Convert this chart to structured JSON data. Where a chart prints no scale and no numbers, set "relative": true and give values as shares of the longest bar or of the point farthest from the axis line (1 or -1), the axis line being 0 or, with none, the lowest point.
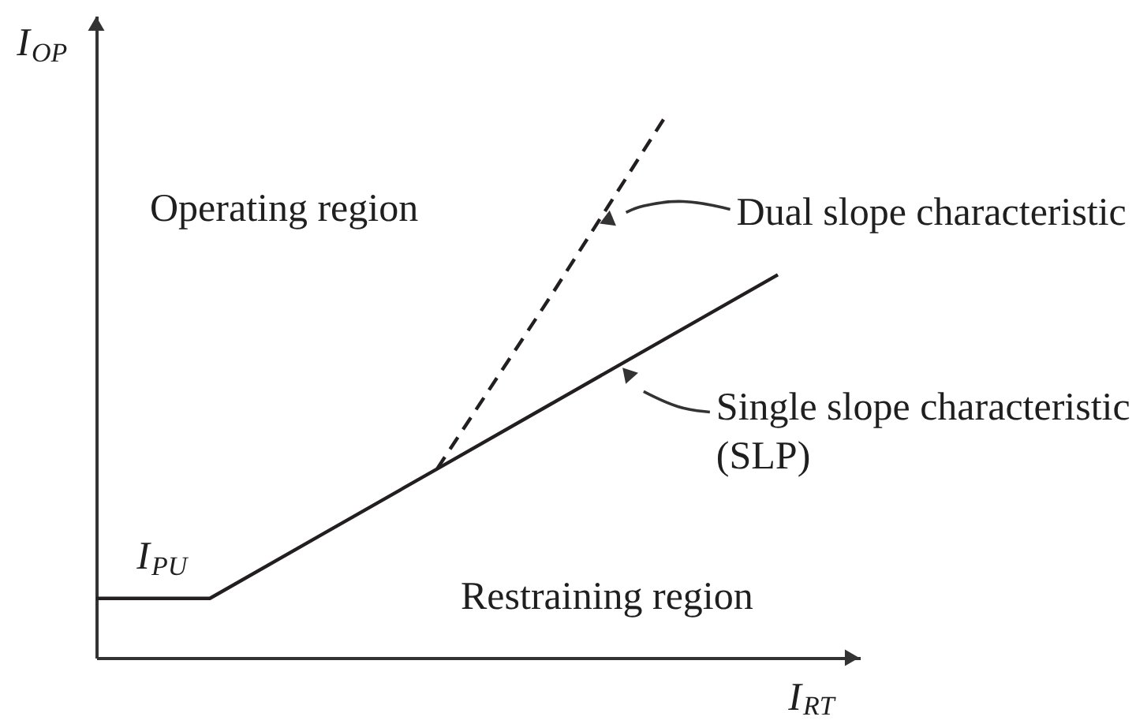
{
  "chart_data": {
    "type": "line",
    "relative": true,
    "xlabel": "I$_{RT}$",
    "ylabel": "I$_{OP}$",
    "categories": [
      null,
      null,
      null,
      null,
      null,
      null,
      null
    ],
    "series": [
      {
        "name": "Single slope characteristic (SLP)",
        "color": "#231f20",
        "values": [
          0.11,
          0.11,
          0.23,
          0.35,
          0.47,
          0.59,
          0.71
        ],
        "line_style": "solid"
      },
      {
        "name": "Dual slope characteristic",
        "color": "#231f20",
        "values": [
          null,
          null,
          null,
          0.35,
          0.67,
          1.0,
          null
        ],
        "line_style": "dashed"
      }
    ],
    "annotations": [
      "Operating region",
      {
        "text": "I$_{PU}$",
        "y": 0.11
      },
      "Restraining region"
    ],
    "marker": "none",
    "grid": false,
    "legend": false
  }
}
